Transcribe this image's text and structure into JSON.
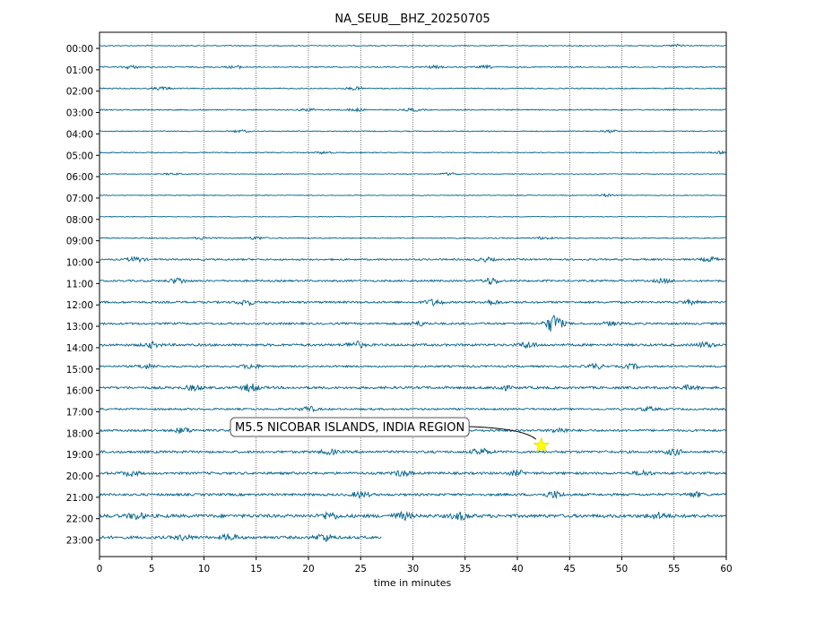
{
  "chart_data": {
    "type": "line",
    "title": "NA_SEUB__BHZ_20250705",
    "xlabel": "time in minutes",
    "ylabel": "",
    "xlim": [
      0,
      60
    ],
    "x_ticks": [
      0,
      5,
      10,
      15,
      20,
      25,
      30,
      35,
      40,
      45,
      50,
      55,
      60
    ],
    "grid": "vertical dotted",
    "trace_color": "#00628b",
    "rows": [
      {
        "label": "00:00",
        "end_minute": 60,
        "amplitude": 0.5,
        "bursts": [
          [
            55.5,
            1.4
          ]
        ]
      },
      {
        "label": "01:00",
        "end_minute": 60,
        "amplitude": 0.6,
        "bursts": [
          [
            3.0,
            1.6
          ],
          [
            13.0,
            1.4
          ],
          [
            32.0,
            1.3
          ],
          [
            37.0,
            1.4
          ]
        ]
      },
      {
        "label": "02:00",
        "end_minute": 60,
        "amplitude": 0.6,
        "bursts": [
          [
            6.0,
            1.6
          ],
          [
            24.5,
            1.5
          ]
        ]
      },
      {
        "label": "03:00",
        "end_minute": 60,
        "amplitude": 0.6,
        "bursts": [
          [
            20.0,
            1.3
          ],
          [
            24.5,
            1.5
          ],
          [
            30.0,
            1.5
          ]
        ]
      },
      {
        "label": "04:00",
        "end_minute": 60,
        "amplitude": 0.5,
        "bursts": [
          [
            13.5,
            1.3
          ],
          [
            49.0,
            1.3
          ]
        ]
      },
      {
        "label": "05:00",
        "end_minute": 60,
        "amplitude": 0.5,
        "bursts": [
          [
            21.5,
            1.2
          ],
          [
            59.5,
            1.2
          ]
        ]
      },
      {
        "label": "06:00",
        "end_minute": 60,
        "amplitude": 0.4,
        "bursts": [
          [
            7.0,
            1.0
          ],
          [
            33.5,
            1.3
          ]
        ]
      },
      {
        "label": "07:00",
        "end_minute": 60,
        "amplitude": 0.4,
        "bursts": [
          [
            48.5,
            1.3
          ]
        ]
      },
      {
        "label": "08:00",
        "end_minute": 60,
        "amplitude": 0.4,
        "bursts": []
      },
      {
        "label": "09:00",
        "end_minute": 60,
        "amplitude": 0.6,
        "bursts": [
          [
            10.0,
            1.5
          ],
          [
            15.0,
            1.5
          ],
          [
            42.5,
            1.3
          ]
        ]
      },
      {
        "label": "10:00",
        "end_minute": 60,
        "amplitude": 0.9,
        "bursts": [
          [
            3.5,
            2.5
          ],
          [
            37.0,
            2.0
          ],
          [
            58.5,
            2.2
          ]
        ]
      },
      {
        "label": "11:00",
        "end_minute": 60,
        "amplitude": 1.0,
        "bursts": [
          [
            7.5,
            3.0
          ],
          [
            37.5,
            3.5
          ],
          [
            54.0,
            2.0
          ]
        ]
      },
      {
        "label": "12:00",
        "end_minute": 60,
        "amplitude": 1.1,
        "bursts": [
          [
            14.0,
            3.0
          ],
          [
            32.0,
            3.0
          ],
          [
            37.5,
            2.5
          ],
          [
            56.5,
            2.0
          ]
        ]
      },
      {
        "label": "13:00",
        "end_minute": 60,
        "amplitude": 1.1,
        "bursts": [
          [
            30.5,
            2.5
          ],
          [
            43.5,
            10.0
          ],
          [
            49.0,
            2.0
          ]
        ]
      },
      {
        "label": "14:00",
        "end_minute": 60,
        "amplitude": 1.3,
        "bursts": [
          [
            5.0,
            2.5
          ],
          [
            24.5,
            3.5
          ],
          [
            41.0,
            3.0
          ],
          [
            58.0,
            2.5
          ]
        ]
      },
      {
        "label": "15:00",
        "end_minute": 60,
        "amplitude": 1.0,
        "bursts": [
          [
            4.5,
            2.5
          ],
          [
            14.5,
            2.5
          ],
          [
            47.5,
            2.5
          ],
          [
            51.0,
            2.5
          ]
        ]
      },
      {
        "label": "16:00",
        "end_minute": 60,
        "amplitude": 1.3,
        "bursts": [
          [
            9.0,
            2.5
          ],
          [
            14.5,
            4.0
          ],
          [
            38.5,
            2.5
          ],
          [
            56.5,
            2.0
          ]
        ]
      },
      {
        "label": "17:00",
        "end_minute": 60,
        "amplitude": 1.0,
        "bursts": [
          [
            20.0,
            2.5
          ],
          [
            52.5,
            2.0
          ]
        ]
      },
      {
        "label": "18:00",
        "end_minute": 60,
        "amplitude": 1.2,
        "bursts": [
          [
            8.0,
            3.0
          ],
          [
            16.0,
            2.5
          ],
          [
            44.0,
            2.5
          ]
        ]
      },
      {
        "label": "19:00",
        "end_minute": 60,
        "amplitude": 1.3,
        "bursts": [
          [
            22.0,
            2.5
          ],
          [
            36.5,
            3.5
          ],
          [
            55.0,
            3.0
          ]
        ]
      },
      {
        "label": "20:00",
        "end_minute": 60,
        "amplitude": 1.3,
        "bursts": [
          [
            3.0,
            2.5
          ],
          [
            29.0,
            3.0
          ],
          [
            40.0,
            2.5
          ],
          [
            52.0,
            2.5
          ]
        ]
      },
      {
        "label": "21:00",
        "end_minute": 60,
        "amplitude": 1.3,
        "bursts": [
          [
            25.0,
            3.0
          ],
          [
            43.5,
            3.5
          ],
          [
            57.0,
            2.5
          ]
        ]
      },
      {
        "label": "22:00",
        "end_minute": 60,
        "amplitude": 1.8,
        "bursts": [
          [
            3.5,
            3.0
          ],
          [
            22.0,
            3.5
          ],
          [
            29.0,
            3.5
          ],
          [
            34.5,
            3.5
          ],
          [
            53.5,
            3.0
          ]
        ]
      },
      {
        "label": "23:00",
        "end_minute": 27,
        "amplitude": 1.5,
        "bursts": [
          [
            8.0,
            2.5
          ],
          [
            12.5,
            3.0
          ],
          [
            21.5,
            4.0
          ]
        ]
      }
    ],
    "annotation": {
      "text": "M5.5 NICOBAR ISLANDS, INDIA REGION",
      "event_minute": 42.3,
      "event_row": 19,
      "marker": "star",
      "marker_color": "#ffff00"
    }
  }
}
